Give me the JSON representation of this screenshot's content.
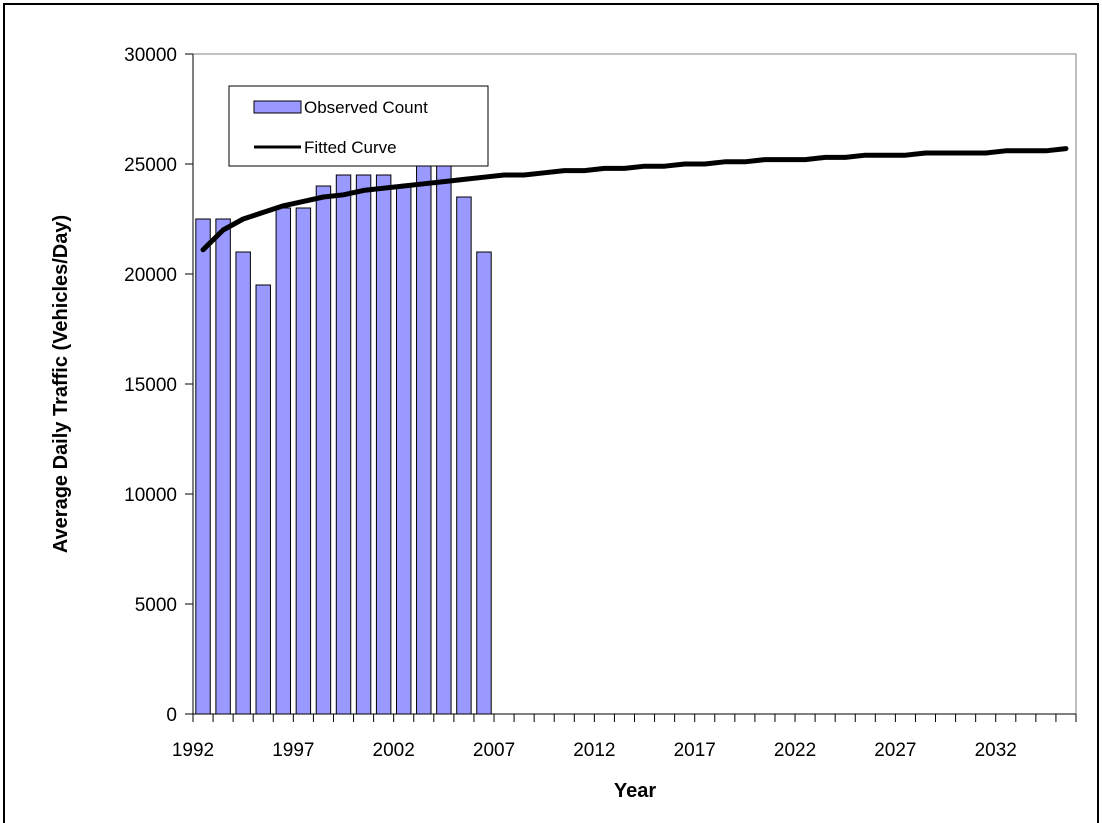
{
  "chart_data": {
    "type": "bar",
    "xlabel": "Year",
    "ylabel": "Average Daily Traffic (Vehicles/Day)",
    "ylim": [
      0,
      30000
    ],
    "xlim": [
      1992,
      2035
    ],
    "yticks": [
      0,
      5000,
      10000,
      15000,
      20000,
      25000,
      30000
    ],
    "xtick_labels": [
      "1992",
      "1997",
      "2002",
      "2007",
      "2012",
      "2017",
      "2022",
      "2027",
      "2032"
    ],
    "grid": false,
    "legend_position": "top-left",
    "series": [
      {
        "name": "Observed Count",
        "type": "bar",
        "color": "#9999ff",
        "x": [
          1992,
          1993,
          1994,
          1995,
          1996,
          1997,
          1998,
          1999,
          2000,
          2001,
          2002,
          2003,
          2004,
          2005,
          2006
        ],
        "values": [
          22500,
          22500,
          21000,
          19500,
          23000,
          23000,
          24000,
          24500,
          24500,
          24500,
          24000,
          25000,
          25000,
          23500,
          21000
        ]
      },
      {
        "name": "Fitted Curve",
        "type": "line",
        "color": "#000000",
        "x": [
          1992,
          1993,
          1994,
          1995,
          1996,
          1997,
          1998,
          1999,
          2000,
          2001,
          2002,
          2003,
          2004,
          2005,
          2006,
          2007,
          2008,
          2009,
          2010,
          2011,
          2012,
          2013,
          2014,
          2015,
          2016,
          2017,
          2018,
          2019,
          2020,
          2021,
          2022,
          2023,
          2024,
          2025,
          2026,
          2027,
          2028,
          2029,
          2030,
          2031,
          2032,
          2033,
          2034,
          2035
        ],
        "values": [
          21100,
          22000,
          22500,
          22800,
          23100,
          23300,
          23500,
          23600,
          23800,
          23900,
          24000,
          24100,
          24200,
          24300,
          24400,
          24500,
          24500,
          24600,
          24700,
          24700,
          24800,
          24800,
          24900,
          24900,
          25000,
          25000,
          25100,
          25100,
          25200,
          25200,
          25200,
          25300,
          25300,
          25400,
          25400,
          25400,
          25500,
          25500,
          25500,
          25500,
          25600,
          25600,
          25600,
          25700
        ]
      }
    ]
  }
}
